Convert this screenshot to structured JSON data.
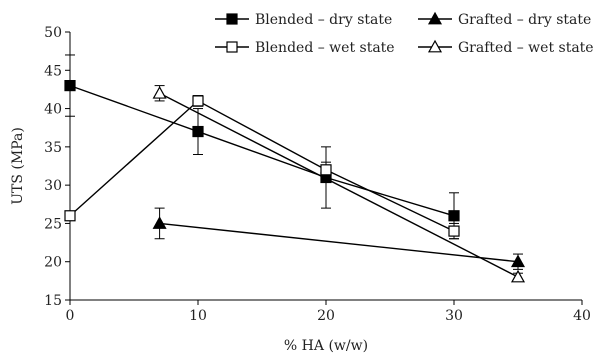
{
  "chart_data": {
    "type": "scatter",
    "title": "",
    "xlabel": "% HA (w/w)",
    "ylabel": "UTS (MPa)",
    "xlim": [
      0,
      40
    ],
    "ylim": [
      15,
      50
    ],
    "x_ticks": [
      0,
      10,
      20,
      30,
      40
    ],
    "y_ticks": [
      15,
      20,
      25,
      30,
      35,
      40,
      45,
      50
    ],
    "grid": false,
    "legend_position": "top-right",
    "series": [
      {
        "name": "Blended – dry state",
        "marker": "square-filled",
        "color": "#000000",
        "points": [
          {
            "x": 0,
            "y": 43,
            "err": 4
          },
          {
            "x": 10,
            "y": 37,
            "err": 3
          },
          {
            "x": 20,
            "y": 31,
            "err": 4
          },
          {
            "x": 30,
            "y": 26,
            "err": 3
          }
        ]
      },
      {
        "name": "Blended – wet state",
        "marker": "square-open",
        "color": "#000000",
        "points": [
          {
            "x": 0,
            "y": 26,
            "err": 0
          },
          {
            "x": 10,
            "y": 41,
            "err": 0.7
          },
          {
            "x": 20,
            "y": 32,
            "err": 1
          },
          {
            "x": 30,
            "y": 24,
            "err": 1
          }
        ]
      },
      {
        "name": "Grafted – dry state",
        "marker": "triangle-filled",
        "color": "#000000",
        "points": [
          {
            "x": 7,
            "y": 25,
            "err": 2
          },
          {
            "x": 35,
            "y": 20,
            "err": 1
          }
        ]
      },
      {
        "name": "Grafted – wet state",
        "marker": "triangle-open",
        "color": "#000000",
        "points": [
          {
            "x": 7,
            "y": 42,
            "err": 1
          },
          {
            "x": 35,
            "y": 18,
            "err": 0.5
          }
        ]
      }
    ]
  }
}
